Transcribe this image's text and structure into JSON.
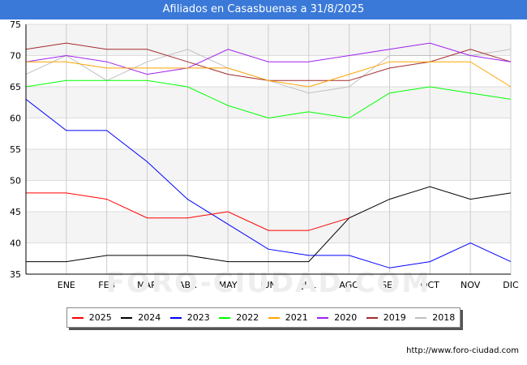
{
  "header": {
    "title": "Afiliados en Casasbuenas a 31/8/2025"
  },
  "chart_data": {
    "type": "line",
    "title": "Afiliados en Casasbuenas a 31/8/2025",
    "categories": [
      "",
      "ENE",
      "FEB",
      "MAR",
      "ABR",
      "MAY",
      "JUN",
      "JUL",
      "AGO",
      "SEP",
      "OCT",
      "NOV",
      "DIC"
    ],
    "yticks": [
      35,
      40,
      45,
      50,
      55,
      60,
      65,
      70,
      75
    ],
    "ylim": [
      35,
      75
    ],
    "grid": true,
    "series": [
      {
        "name": "2025",
        "color": "#ff0000",
        "values": [
          48,
          48,
          47,
          44,
          44,
          45,
          42,
          42,
          44,
          null,
          null,
          null,
          null
        ]
      },
      {
        "name": "2024",
        "color": "#000000",
        "values": [
          37,
          37,
          38,
          38,
          38,
          37,
          37,
          37,
          44,
          47,
          49,
          47,
          48
        ]
      },
      {
        "name": "2023",
        "color": "#0000ff",
        "values": [
          63,
          58,
          58,
          53,
          47,
          43,
          39,
          38,
          38,
          36,
          37,
          40,
          37
        ]
      },
      {
        "name": "2022",
        "color": "#00ff00",
        "values": [
          65,
          66,
          66,
          66,
          65,
          62,
          60,
          61,
          60,
          64,
          65,
          64,
          63
        ]
      },
      {
        "name": "2021",
        "color": "#ffa500",
        "values": [
          69,
          69,
          68,
          68,
          68,
          68,
          66,
          65,
          67,
          69,
          69,
          69,
          65
        ]
      },
      {
        "name": "2020",
        "color": "#a020f0",
        "values": [
          69,
          70,
          69,
          67,
          68,
          71,
          69,
          69,
          70,
          71,
          72,
          70,
          69
        ]
      },
      {
        "name": "2019",
        "color": "#a52a2a",
        "values": [
          71,
          72,
          71,
          71,
          69,
          67,
          66,
          66,
          66,
          68,
          69,
          71,
          69
        ]
      },
      {
        "name": "2018",
        "color": "#c0c0c0",
        "values": [
          67,
          70,
          66,
          69,
          71,
          68,
          66,
          64,
          65,
          70,
          70,
          70,
          71
        ]
      }
    ]
  },
  "footer": {
    "source": "http://www.foro-ciudad.com"
  },
  "watermark": "FORO-CIUDAD.COM"
}
